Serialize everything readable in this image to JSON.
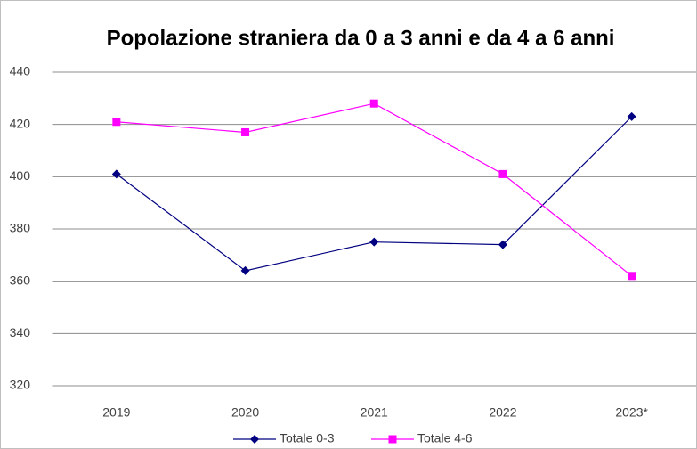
{
  "chart_data": {
    "type": "line",
    "title": "Popolazione straniera da 0 a 3 anni e da 4 a 6 anni",
    "categories": [
      "2019",
      "2020",
      "2021",
      "2022",
      "2023*"
    ],
    "series": [
      {
        "name": "Totale 0-3",
        "color": "#000080",
        "marker": "diamond",
        "values": [
          401,
          364,
          375,
          374,
          423
        ]
      },
      {
        "name": "Totale 4-6",
        "color": "#ff00ff",
        "marker": "square",
        "values": [
          421,
          417,
          428,
          401,
          362
        ]
      }
    ],
    "ylim": [
      320,
      440
    ],
    "yticks": [
      320,
      340,
      360,
      380,
      400,
      420,
      440
    ],
    "grid": true,
    "legend": "bottom"
  }
}
